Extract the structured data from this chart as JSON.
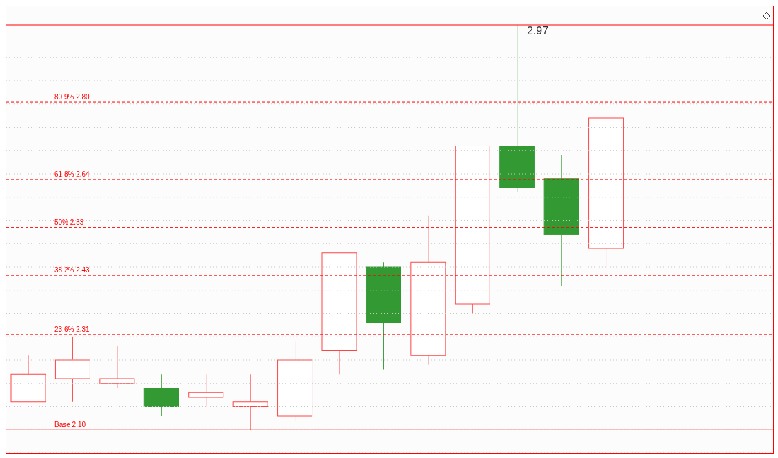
{
  "chart_data": {
    "type": "candlestick",
    "categories": [
      null,
      null,
      null,
      null,
      null,
      null,
      null,
      null,
      null,
      null,
      null,
      null,
      null,
      null
    ],
    "ohlc": [
      [
        2.16,
        2.26,
        2.16,
        2.22
      ],
      [
        2.21,
        2.3,
        2.16,
        2.25
      ],
      [
        2.2,
        2.28,
        2.19,
        2.21
      ],
      [
        2.19,
        2.22,
        2.13,
        2.15
      ],
      [
        2.17,
        2.22,
        2.15,
        2.18
      ],
      [
        2.15,
        2.22,
        2.1,
        2.16
      ],
      [
        2.13,
        2.29,
        2.12,
        2.25
      ],
      [
        2.27,
        2.48,
        2.22,
        2.48
      ],
      [
        2.45,
        2.46,
        2.23,
        2.33
      ],
      [
        2.26,
        2.56,
        2.24,
        2.46
      ],
      [
        2.37,
        2.71,
        2.35,
        2.71
      ],
      [
        2.71,
        2.97,
        2.61,
        2.62
      ],
      [
        2.64,
        2.69,
        2.41,
        2.52
      ],
      [
        2.49,
        2.77,
        2.45,
        2.77
      ]
    ],
    "colors": [
      "#ff4444",
      "#ff4444",
      "#ff4444",
      "#339933",
      "#ff4444",
      "#ff4444",
      "#ff4444",
      "#ff4444",
      "#339933",
      "#ff4444",
      "#ff4444",
      "#339933",
      "#339933",
      "#ff4444"
    ],
    "ylim": [
      2.05,
      3.01
    ],
    "yticks": [
      {
        "value": 2.05,
        "label": null
      },
      {
        "value": 2.1,
        "label": null
      },
      {
        "value": 2.15,
        "label": null
      },
      {
        "value": 2.2,
        "label": null
      },
      {
        "value": 2.25,
        "label": null
      },
      {
        "value": 2.3,
        "label": null
      },
      {
        "value": 2.35,
        "label": null
      },
      {
        "value": 2.4,
        "label": null
      },
      {
        "value": 2.45,
        "label": null
      },
      {
        "value": 2.5,
        "label": null
      },
      {
        "value": 2.55,
        "label": null
      },
      {
        "value": 2.6,
        "label": null
      },
      {
        "value": 2.65,
        "label": null
      },
      {
        "value": 2.7,
        "label": null
      },
      {
        "value": 2.75,
        "label": null
      },
      {
        "value": 2.8,
        "label": null
      },
      {
        "value": 2.85,
        "label": null
      },
      {
        "value": 2.9,
        "label": null
      },
      {
        "value": 2.95,
        "label": null
      }
    ],
    "grid": "y",
    "tick_labels": false,
    "ref_lines": [
      {
        "axis": "y",
        "value": 2.1,
        "label": "Base 2.10",
        "color": "#ff0000",
        "line_style": "solid"
      },
      {
        "axis": "y",
        "value": 2.305,
        "label": "23.6% 2.31",
        "color": "#ff0000",
        "line_style": "dashed"
      },
      {
        "axis": "y",
        "value": 2.432,
        "label": "38.2% 2.43",
        "color": "#ff0000",
        "line_style": "dashed"
      },
      {
        "axis": "y",
        "value": 2.535,
        "label": "50% 2.53",
        "color": "#ff0000",
        "line_style": "dashed"
      },
      {
        "axis": "y",
        "value": 2.638,
        "label": "61.8% 2.64",
        "color": "#ff0000",
        "line_style": "dashed"
      },
      {
        "axis": "y",
        "value": 2.804,
        "label": "80.9% 2.80",
        "color": "#ff0000",
        "line_style": "dashed"
      },
      {
        "axis": "y",
        "value": 2.97,
        "label": null,
        "color": "#ff0000",
        "line_style": "solid"
      }
    ],
    "annotations": [
      {
        "text": "2.97",
        "y": 2.97
      }
    ]
  }
}
